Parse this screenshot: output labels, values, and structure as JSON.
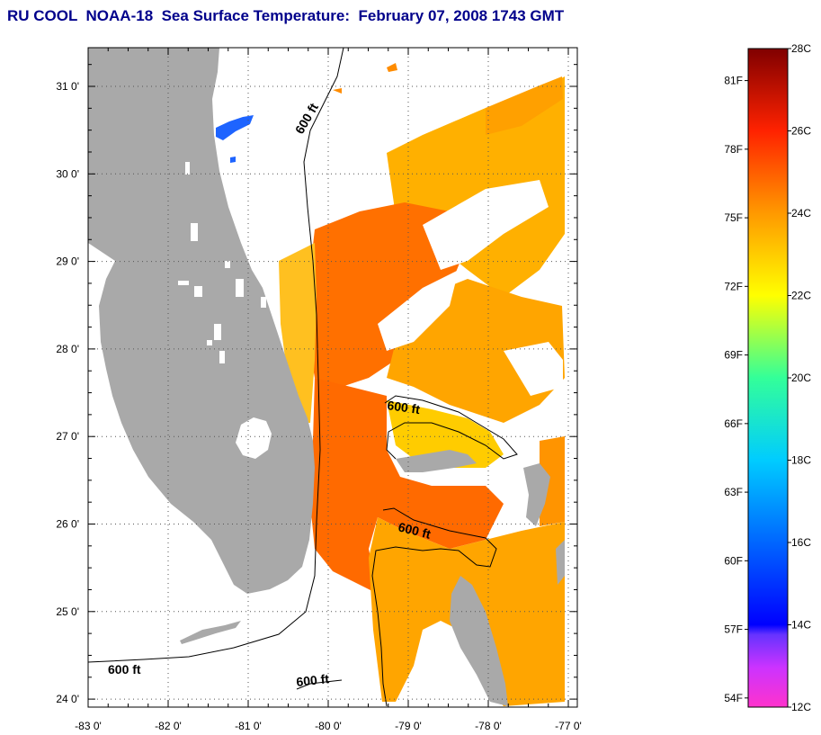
{
  "title": "RU COOL  NOAA-18  Sea Surface Temperature:  February 07, 2008 1743 GMT",
  "map": {
    "lon_labels": [
      "-83 0'",
      "-82 0'",
      "-81 0'",
      "-80 0'",
      "-79 0'",
      "-78 0'",
      "-77 0'"
    ],
    "lat_labels": [
      "31 0'",
      "30 0'",
      "29 0'",
      "28 0'",
      "27 0'",
      "26 0'",
      "25 0'",
      "24 0'"
    ],
    "contour_labels": [
      "600 ft",
      "600 ft",
      "600 ft",
      "600 ft",
      "600 ft"
    ],
    "grid": "dotted",
    "colors": {
      "land": "#a9a9a9",
      "no_data": "#ffffff",
      "warm": "#ff6a00",
      "mid": "#ffa500",
      "cool": "#ffd700"
    }
  },
  "colorbar": {
    "fahrenheit_labels": [
      "81F",
      "78F",
      "75F",
      "72F",
      "69F",
      "66F",
      "63F",
      "60F",
      "57F",
      "54F"
    ],
    "celsius_labels": [
      "28C",
      "26C",
      "24C",
      "22C",
      "20C",
      "18C",
      "16C",
      "14C",
      "12C"
    ],
    "range_c": [
      12,
      28
    ],
    "range_f": [
      54,
      82
    ]
  }
}
